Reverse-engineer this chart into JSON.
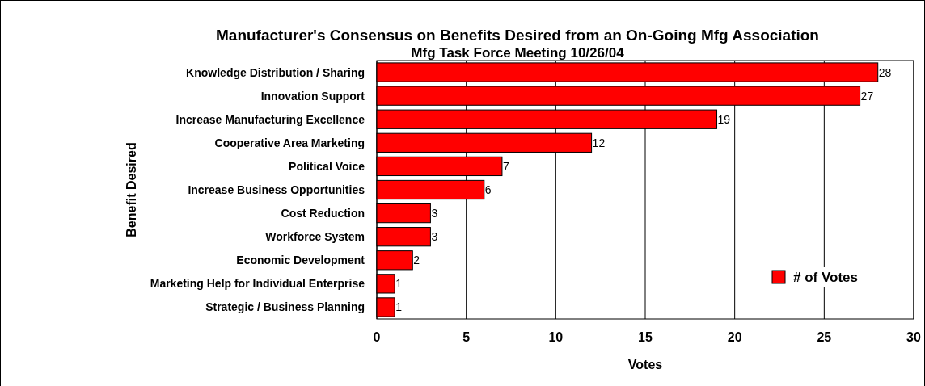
{
  "chart_data": {
    "type": "bar",
    "orientation": "horizontal",
    "title": "Manufacturer's Consensus on Benefits Desired from an On-Going Mfg Association",
    "subtitle": "Mfg Task Force Meeting 10/26/04",
    "xlabel": "Votes",
    "ylabel": "Benefit Desired",
    "categories": [
      "Knowledge Distribution / Sharing",
      "Innovation Support",
      "Increase Manufacturing Excellence",
      "Cooperative Area Marketing",
      "Political Voice",
      "Increase Business Opportunities",
      "Cost Reduction",
      "Workforce System",
      "Economic Development",
      "Marketing Help for Individual Enterprise",
      "Strategic / Business Planning"
    ],
    "series": [
      {
        "name": "# of Votes",
        "color": "#ff0000",
        "values": [
          28,
          27,
          19,
          12,
          7,
          6,
          3,
          3,
          2,
          1,
          1
        ]
      }
    ],
    "xlim": [
      0,
      30
    ],
    "xticks": [
      0,
      5,
      10,
      15,
      20,
      25,
      30
    ],
    "grid": "x",
    "legend": "bottom right",
    "data_labels": true
  }
}
